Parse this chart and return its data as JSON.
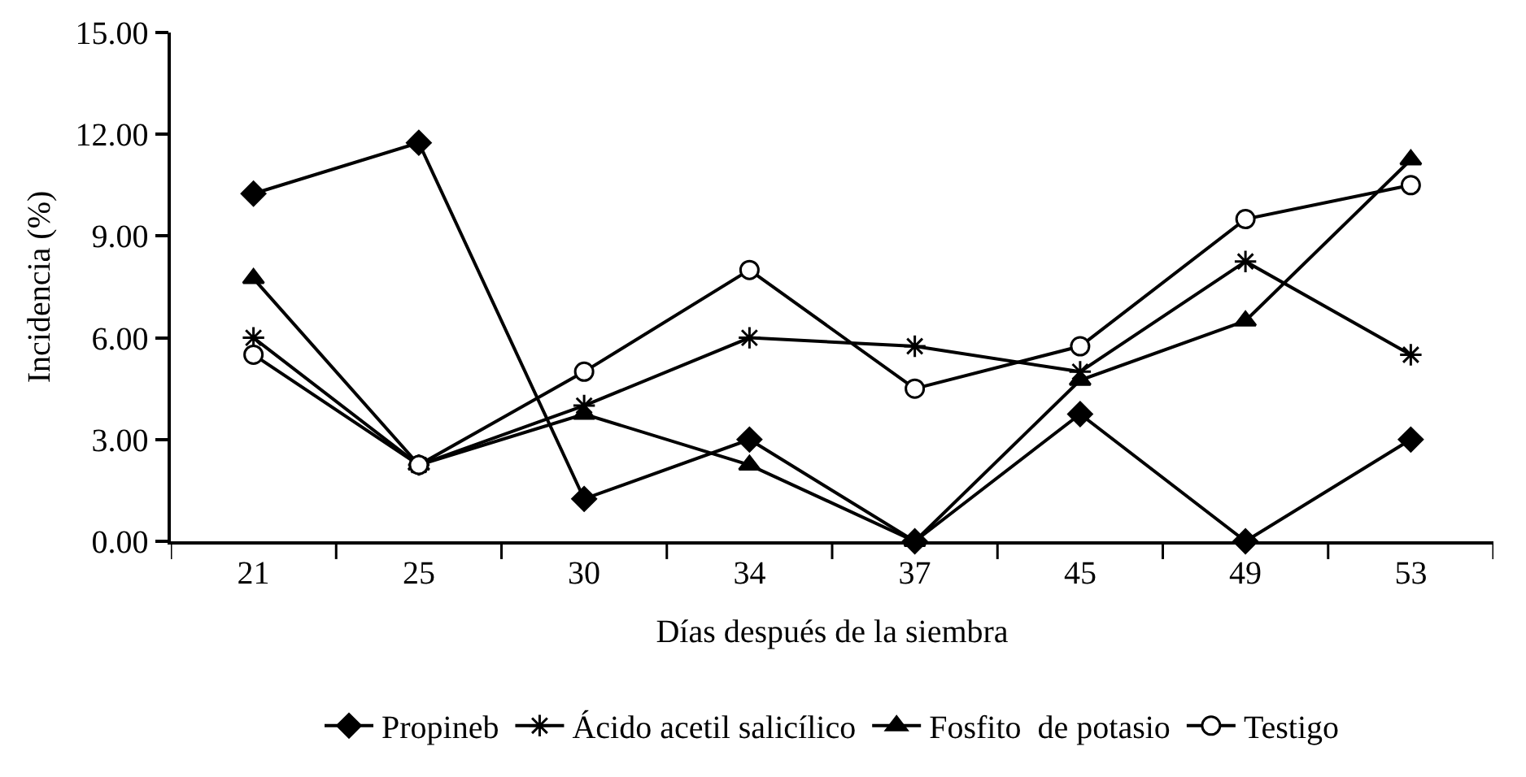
{
  "chart_data": {
    "type": "line",
    "xlabel": "Días después de la siembra",
    "ylabel": "Incidencia (%)",
    "categories": [
      "21",
      "25",
      "30",
      "34",
      "37",
      "45",
      "49",
      "53"
    ],
    "series": [
      {
        "name": "Propineb",
        "color": "#000000",
        "marker": "diamond",
        "values": [
          10.25,
          11.75,
          1.25,
          3.0,
          0,
          3.75,
          0,
          3.0
        ]
      },
      {
        "name": "Ácido acetil salicílico",
        "color": "#000000",
        "marker": "cross",
        "values": [
          6.0,
          2.25,
          4.0,
          6.0,
          5.75,
          5.0,
          8.25,
          5.5
        ]
      },
      {
        "name": "Fosfito  de potasio",
        "color": "#000000",
        "marker": "triangle",
        "values": [
          7.75,
          2.25,
          3.75,
          2.25,
          0,
          4.75,
          6.5,
          11.25
        ]
      },
      {
        "name": "Testigo",
        "color": "#000000",
        "marker": "circle",
        "values": [
          5.5,
          2.25,
          5.0,
          8.0,
          4.5,
          5.75,
          9.5,
          10.5
        ]
      }
    ],
    "ylim": [
      0,
      15
    ],
    "yticks": [
      {
        "value": 0,
        "label": "0.00"
      },
      {
        "value": 3,
        "label": "3.00"
      },
      {
        "value": 6,
        "label": "6.00"
      },
      {
        "value": 9,
        "label": "9.00"
      },
      {
        "value": 12,
        "label": "12.00"
      },
      {
        "value": 15,
        "label": "15.00"
      }
    ],
    "grid": false,
    "legend": "bottom",
    "line_style": "solid"
  }
}
